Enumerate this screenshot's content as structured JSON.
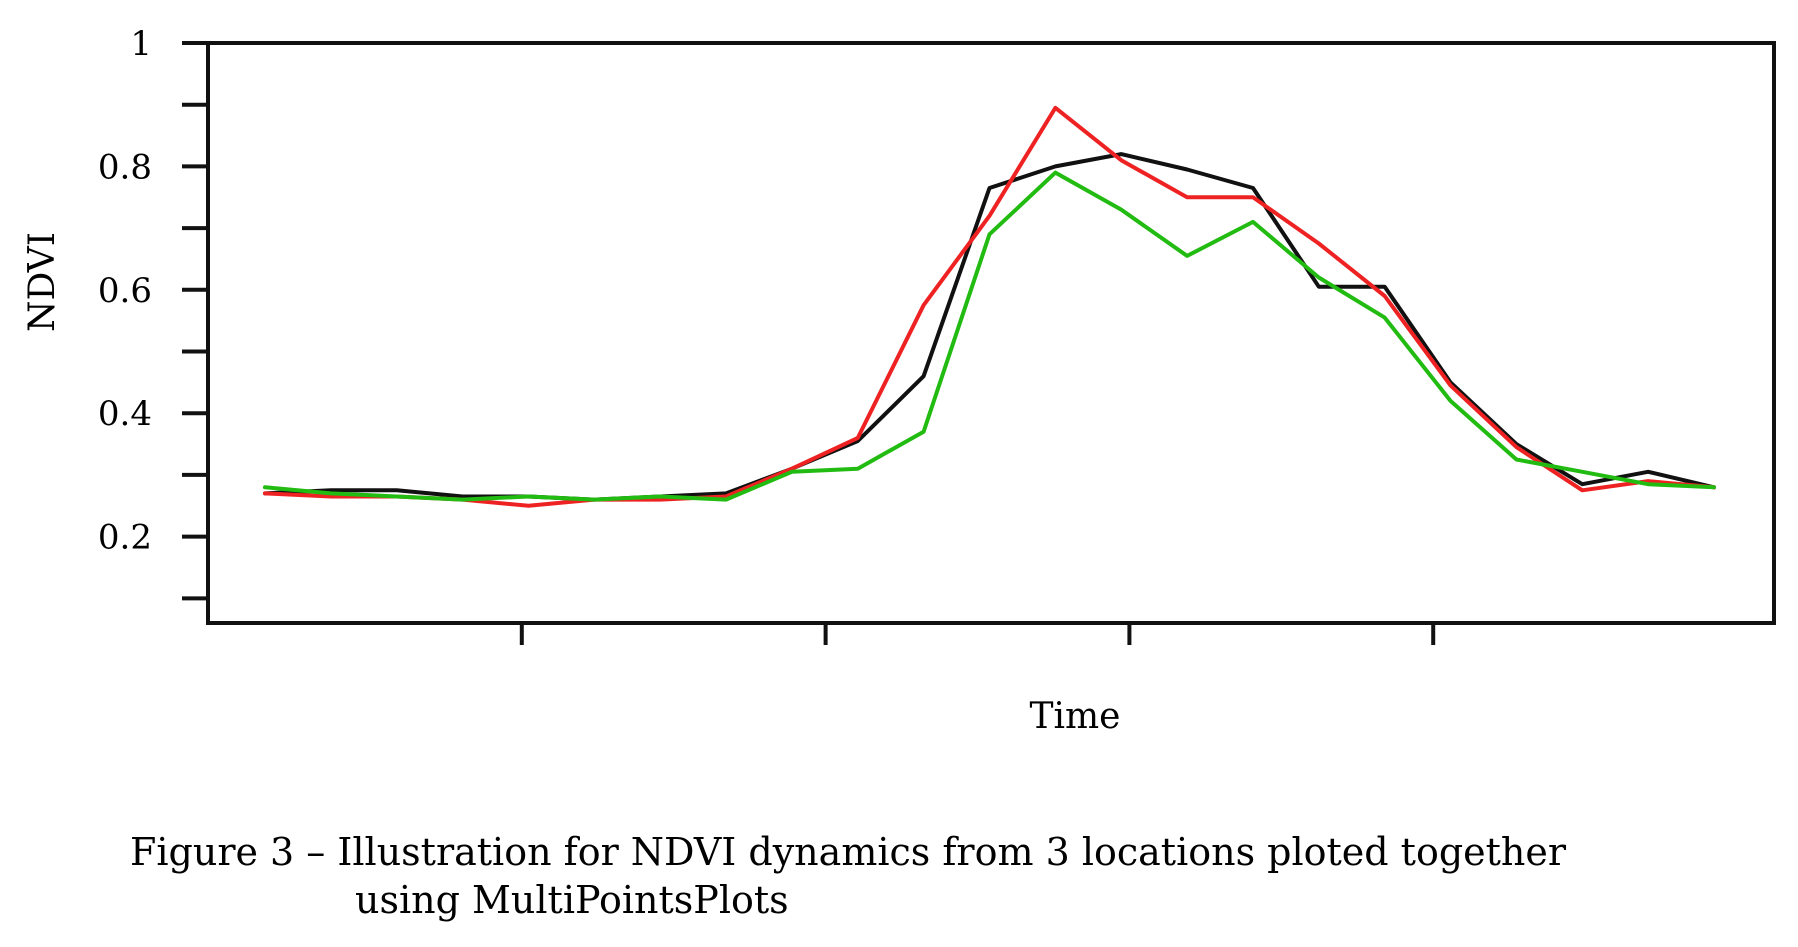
{
  "chart_data": {
    "type": "line",
    "xlabel": "Time",
    "ylabel": "NDVI",
    "ylim": [
      0.06,
      1.0
    ],
    "y_ticks": [
      0.2,
      0.4,
      0.6,
      0.8,
      1
    ],
    "y_tick_labels": [
      "0.2",
      "0.4",
      "0.6",
      "0.8",
      "1"
    ],
    "y_minor_ticks": [
      0.1,
      0.3,
      0.5,
      0.7,
      0.9
    ],
    "x_tick_count": 4,
    "grid": false,
    "legend": "none",
    "x": [
      1,
      2,
      3,
      4,
      5,
      6,
      7,
      8,
      9,
      10,
      11,
      12,
      13,
      14,
      15,
      16,
      17,
      18,
      19,
      20,
      21,
      22,
      23,
      24
    ],
    "series": [
      {
        "color": "#111111",
        "values": [
          0.27,
          0.275,
          0.275,
          0.265,
          0.265,
          0.26,
          0.265,
          0.27,
          0.31,
          0.355,
          0.46,
          0.765,
          0.8,
          0.82,
          0.795,
          0.765,
          0.605,
          0.605,
          0.45,
          0.35,
          0.285,
          0.305,
          0.28,
          null
        ]
      },
      {
        "color": "#ee2222",
        "values": [
          0.27,
          0.265,
          0.265,
          0.26,
          0.25,
          0.26,
          0.26,
          0.265,
          0.31,
          0.36,
          0.575,
          0.72,
          0.895,
          0.81,
          0.75,
          0.75,
          0.675,
          0.59,
          0.445,
          0.345,
          0.275,
          0.29,
          0.28,
          null
        ]
      },
      {
        "color": "#22bb11",
        "values": [
          0.28,
          0.27,
          0.265,
          0.26,
          0.265,
          0.26,
          0.265,
          0.26,
          0.305,
          0.31,
          0.37,
          0.69,
          0.79,
          0.73,
          0.655,
          0.71,
          0.62,
          0.555,
          0.42,
          0.325,
          0.305,
          0.285,
          0.28,
          null
        ]
      }
    ]
  },
  "caption": {
    "line1": "Figure 3 – Illustration for NDVI dynamics from 3 locations ploted together",
    "line2": "using MultiPointsPlots"
  }
}
